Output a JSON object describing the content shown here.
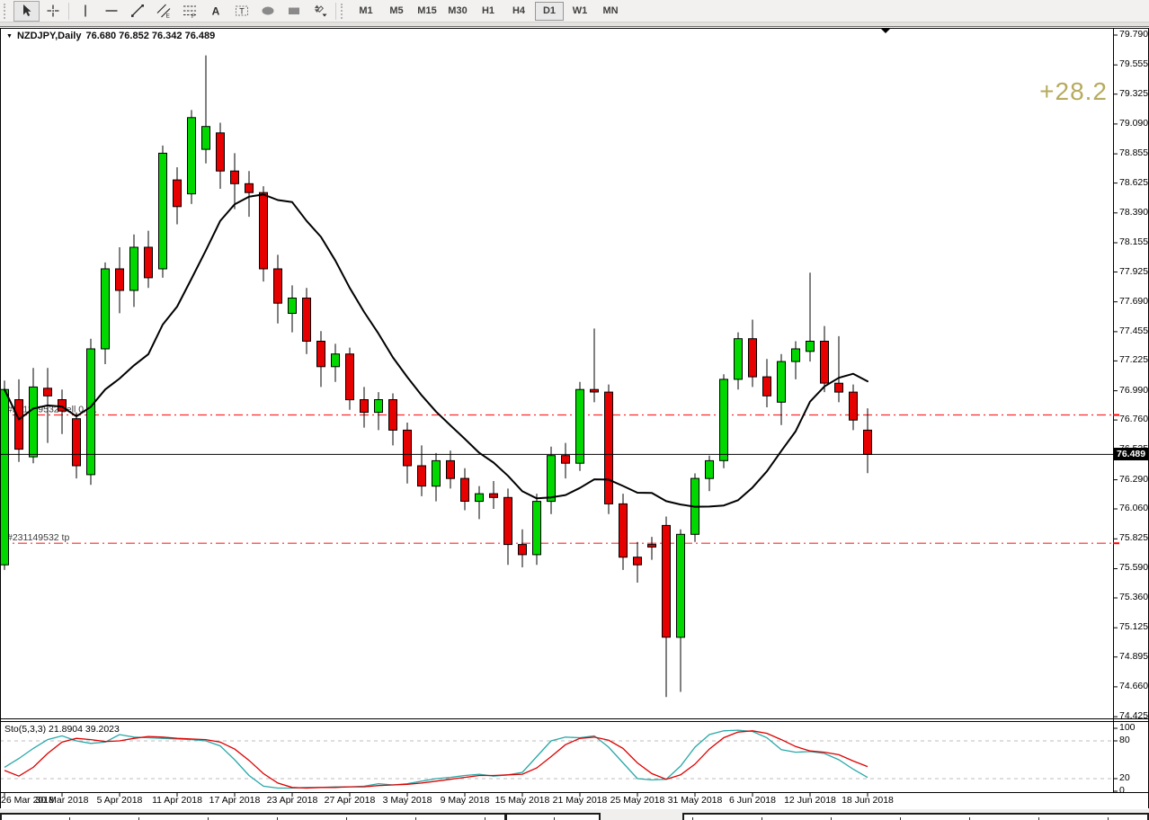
{
  "ui": {
    "dropdown_caret": "▼"
  },
  "toolbar": {
    "tools": [
      {
        "name": "cursor-arrow",
        "pressed": true
      },
      {
        "name": "crosshair",
        "pressed": false
      },
      {
        "name": "vertical-line-tool",
        "pressed": false
      },
      {
        "name": "horizontal-line-tool",
        "pressed": false
      },
      {
        "name": "trend-line-tool",
        "pressed": false
      },
      {
        "name": "equidistant-channel-tool",
        "pressed": false
      },
      {
        "name": "fibonacci-retracement-tool",
        "pressed": false
      },
      {
        "name": "text-tool",
        "pressed": false
      },
      {
        "name": "text-label-tool",
        "pressed": false
      },
      {
        "name": "ellipse-tool",
        "pressed": false
      },
      {
        "name": "rectangle-tool",
        "pressed": false
      },
      {
        "name": "arrows-tool",
        "pressed": false
      }
    ],
    "timeframes": [
      {
        "label": "M1",
        "active": false
      },
      {
        "label": "M5",
        "active": false
      },
      {
        "label": "M15",
        "active": false
      },
      {
        "label": "M30",
        "active": false
      },
      {
        "label": "H1",
        "active": false
      },
      {
        "label": "H4",
        "active": false
      },
      {
        "label": "D1",
        "active": true
      },
      {
        "label": "W1",
        "active": false
      },
      {
        "label": "MN",
        "active": false
      }
    ]
  },
  "chart_data": {
    "type": "candlestick",
    "title": "NZDJPY,Daily",
    "ohlc_current_text": "76.680 76.852 76.342 76.489",
    "current_price": 76.489,
    "current_price_text": "76.489",
    "profit_text": "+28.2",
    "ylim": [
      74.425,
      79.79
    ],
    "colors": {
      "bull": "#00d800",
      "bear": "#e60000",
      "ma": "#000000",
      "order_line": "#ff2a2a",
      "stoch_main": "#2aa8a8",
      "stoch_signal": "#dd0000",
      "profit": "#b6ab5e",
      "price_box_bg": "#000000"
    },
    "y_ticks": [
      "79.790",
      "79.555",
      "79.325",
      "79.090",
      "78.855",
      "78.625",
      "78.390",
      "78.155",
      "77.925",
      "77.690",
      "77.455",
      "77.225",
      "76.990",
      "76.760",
      "76.525",
      "76.290",
      "76.060",
      "75.825",
      "75.590",
      "75.360",
      "75.125",
      "74.895",
      "74.660",
      "74.425"
    ],
    "x_ticks": [
      {
        "i": 0,
        "label": "26 Mar 2018"
      },
      {
        "i": 4,
        "label": "30 Mar 2018"
      },
      {
        "i": 8,
        "label": "5 Apr 2018"
      },
      {
        "i": 12,
        "label": "11 Apr 2018"
      },
      {
        "i": 16,
        "label": "17 Apr 2018"
      },
      {
        "i": 20,
        "label": "23 Apr 2018"
      },
      {
        "i": 24,
        "label": "27 Apr 2018"
      },
      {
        "i": 28,
        "label": "3 May 2018"
      },
      {
        "i": 32,
        "label": "9 May 2018"
      },
      {
        "i": 36,
        "label": "15 May 2018"
      },
      {
        "i": 40,
        "label": "21 May 2018"
      },
      {
        "i": 44,
        "label": "25 May 2018"
      },
      {
        "i": 48,
        "label": "31 May 2018"
      },
      {
        "i": 52,
        "label": "6 Jun 2018"
      },
      {
        "i": 56,
        "label": "12 Jun 2018"
      },
      {
        "i": 60,
        "label": "18 Jun 2018"
      }
    ],
    "candles_ohlc": [
      [
        75.62,
        77.07,
        75.58,
        77.0
      ],
      [
        76.92,
        77.08,
        76.43,
        76.53
      ],
      [
        76.47,
        77.17,
        76.42,
        77.02
      ],
      [
        77.01,
        77.17,
        76.58,
        76.95
      ],
      [
        76.92,
        77.0,
        76.65,
        76.83
      ],
      [
        76.77,
        76.82,
        76.3,
        76.4
      ],
      [
        76.33,
        77.4,
        76.25,
        77.32
      ],
      [
        77.32,
        78.0,
        77.2,
        77.95
      ],
      [
        77.95,
        78.12,
        77.6,
        77.78
      ],
      [
        77.78,
        78.22,
        77.65,
        78.12
      ],
      [
        78.12,
        78.25,
        77.8,
        77.88
      ],
      [
        77.95,
        78.92,
        77.88,
        78.86
      ],
      [
        78.65,
        78.75,
        78.3,
        78.44
      ],
      [
        78.54,
        79.2,
        78.46,
        79.14
      ],
      [
        78.89,
        79.63,
        78.78,
        79.07
      ],
      [
        79.02,
        79.1,
        78.58,
        78.72
      ],
      [
        78.72,
        78.86,
        78.42,
        78.62
      ],
      [
        78.62,
        78.72,
        78.36,
        78.55
      ],
      [
        78.55,
        78.6,
        77.85,
        77.95
      ],
      [
        77.95,
        78.06,
        77.52,
        77.68
      ],
      [
        77.6,
        77.82,
        77.45,
        77.72
      ],
      [
        77.72,
        77.8,
        77.28,
        77.38
      ],
      [
        77.38,
        77.46,
        77.02,
        77.18
      ],
      [
        77.18,
        77.36,
        77.06,
        77.28
      ],
      [
        77.28,
        77.33,
        76.84,
        76.92
      ],
      [
        76.92,
        77.02,
        76.7,
        76.82
      ],
      [
        76.82,
        76.98,
        76.68,
        76.92
      ],
      [
        76.92,
        76.97,
        76.56,
        76.68
      ],
      [
        76.68,
        76.74,
        76.26,
        76.4
      ],
      [
        76.4,
        76.56,
        76.16,
        76.24
      ],
      [
        76.24,
        76.5,
        76.12,
        76.44
      ],
      [
        76.44,
        76.52,
        76.22,
        76.3
      ],
      [
        76.3,
        76.38,
        76.05,
        76.12
      ],
      [
        76.12,
        76.24,
        75.98,
        76.18
      ],
      [
        76.18,
        76.28,
        76.06,
        76.15
      ],
      [
        76.15,
        76.22,
        75.62,
        75.78
      ],
      [
        75.78,
        75.9,
        75.6,
        75.7
      ],
      [
        75.7,
        76.18,
        75.62,
        76.12
      ],
      [
        76.12,
        76.55,
        76.02,
        76.48
      ],
      [
        76.48,
        76.58,
        76.3,
        76.42
      ],
      [
        76.42,
        77.06,
        76.36,
        77.0
      ],
      [
        77.0,
        77.48,
        76.9,
        76.98
      ],
      [
        76.98,
        77.04,
        76.02,
        76.1
      ],
      [
        76.1,
        76.18,
        75.58,
        75.68
      ],
      [
        75.68,
        75.8,
        75.48,
        75.62
      ],
      [
        75.78,
        75.84,
        75.66,
        75.76
      ],
      [
        75.93,
        76.0,
        74.58,
        75.05
      ],
      [
        75.05,
        75.9,
        74.62,
        75.86
      ],
      [
        75.86,
        76.34,
        75.8,
        76.3
      ],
      [
        76.3,
        76.48,
        76.2,
        76.44
      ],
      [
        76.44,
        77.12,
        76.38,
        77.08
      ],
      [
        77.08,
        77.45,
        77.0,
        77.4
      ],
      [
        77.4,
        77.55,
        77.02,
        77.1
      ],
      [
        77.1,
        77.24,
        76.86,
        76.95
      ],
      [
        76.9,
        77.28,
        76.72,
        77.22
      ],
      [
        77.22,
        77.38,
        77.08,
        77.32
      ],
      [
        77.3,
        77.92,
        77.22,
        77.38
      ],
      [
        77.38,
        77.5,
        76.98,
        77.05
      ],
      [
        77.05,
        77.42,
        76.9,
        76.98
      ],
      [
        76.98,
        77.04,
        76.68,
        76.76
      ],
      [
        76.68,
        76.852,
        76.342,
        76.489
      ]
    ],
    "ma": {
      "name": "moving-average",
      "period": 10,
      "color": "#000000"
    },
    "orders": [
      {
        "label": "#231149532 sell 0.01",
        "price": 76.8,
        "style": "dash-dot",
        "color": "#ff2a2a"
      },
      {
        "label": "#231149532 tp",
        "price": 75.79,
        "style": "dash-dot",
        "color": "#ff2a2a"
      }
    ],
    "stochastic": {
      "label": "Sto(5,3,3) 21.8904 39.2023",
      "main_value": 21.8904,
      "signal_value": 39.2023,
      "range": [
        0,
        100
      ],
      "levels": [
        80,
        20
      ],
      "y_ticks": [
        100,
        80,
        20,
        0
      ],
      "main": [
        38,
        52,
        68,
        82,
        88,
        80,
        76,
        78,
        90,
        86,
        85,
        84,
        83,
        82,
        80,
        72,
        50,
        25,
        8,
        5,
        5,
        6,
        6,
        7,
        7,
        8,
        12,
        10,
        12,
        16,
        20,
        22,
        25,
        27,
        24,
        26,
        30,
        55,
        80,
        86,
        85,
        88,
        70,
        45,
        20,
        18,
        19,
        40,
        70,
        90,
        96,
        97,
        95,
        85,
        66,
        62,
        63,
        60,
        50,
        35,
        21.89
      ],
      "signal": [
        33,
        24,
        38,
        60,
        78,
        84,
        82,
        79,
        80,
        84,
        87,
        86,
        84,
        83,
        82,
        78,
        67,
        49,
        28,
        13,
        6,
        5,
        6,
        6,
        7,
        7,
        9,
        10,
        11,
        13,
        16,
        19,
        22,
        25,
        25,
        26,
        27,
        37,
        55,
        74,
        84,
        86,
        81,
        68,
        45,
        28,
        19,
        26,
        43,
        67,
        85,
        94,
        96,
        92,
        82,
        71,
        64,
        62,
        58,
        48,
        39.2
      ]
    }
  }
}
